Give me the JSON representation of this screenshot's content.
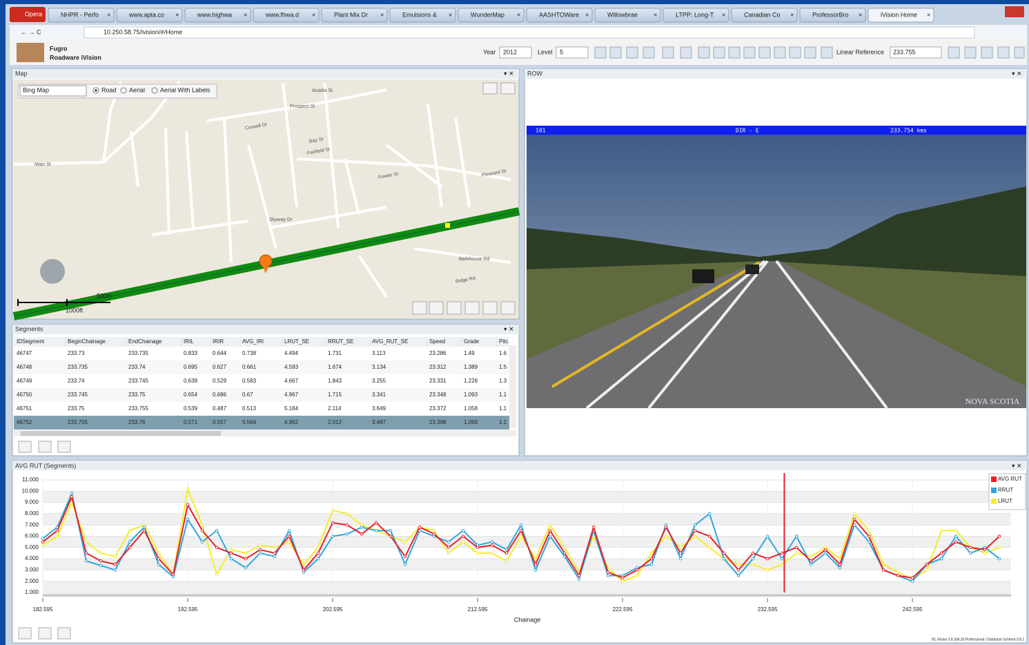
{
  "browser": {
    "menu": "Opera",
    "tabs": [
      "NHPR - Perfo",
      "www.apta.co",
      "www.highwa",
      "www.fhwa.d",
      "Plant Mix Dr",
      "Emulsions &",
      "WunderMap",
      "AASHTOWare",
      "Willowbrae",
      "LTPP: Long-T",
      "Canadian Co",
      "ProfessorBro",
      "iVision Home"
    ],
    "address": "10.250.58.75/ivision/#/Home"
  },
  "app": {
    "brand": "Fugro",
    "product": "Roadware iVision",
    "year_label": "Year",
    "year": "2012",
    "level_label": "Level",
    "level": "5",
    "linref_label": "Linear Reference",
    "linref": "233.755"
  },
  "map": {
    "title": "Map",
    "source": "Bing Map",
    "modes": [
      "Road",
      "Aerial",
      "Aerial With Labels"
    ],
    "scale_m": "500m",
    "scale_ft": "1000ft",
    "streets": [
      "Main St",
      "Prospect St",
      "Crowell Dr",
      "Bay St",
      "Fairfield St",
      "Fowler St",
      "Skyway Dr",
      "Barkhouse Rd",
      "Ridge Rd",
      "Acadia St",
      "Pleasant St"
    ]
  },
  "segments": {
    "title": "Segments",
    "columns": [
      "IDSegment",
      "BeginChainage",
      "EndChainage",
      "IRIL",
      "IRIR",
      "AVG_IRI",
      "LRUT_SE",
      "RRUT_SE",
      "AVG_RUT_SE",
      "Speed",
      "Grade",
      "Pitc"
    ],
    "rows": [
      [
        "46747",
        "233.73",
        "233.735",
        "0.833",
        "0.644",
        "0.738",
        "4.494",
        "1.731",
        "3.113",
        "23.286",
        "1.49",
        "1.6"
      ],
      [
        "46748",
        "233.735",
        "233.74",
        "0.695",
        "0.627",
        "0.661",
        "4.593",
        "1.674",
        "3.134",
        "23.312",
        "1.389",
        "1.5"
      ],
      [
        "46749",
        "233.74",
        "233.745",
        "0.638",
        "0.529",
        "0.583",
        "4.667",
        "1.843",
        "3.255",
        "23.331",
        "1.228",
        "1.3"
      ],
      [
        "46750",
        "233.745",
        "233.75",
        "0.654",
        "0.686",
        "0.67",
        "4.967",
        "1.715",
        "3.341",
        "23.348",
        "1.093",
        "1.1"
      ],
      [
        "46751",
        "233.75",
        "233.755",
        "0.539",
        "0.487",
        "0.513",
        "5.184",
        "2.114",
        "3.649",
        "23.372",
        "1.058",
        "1.1"
      ],
      [
        "46752",
        "233.755",
        "233.76",
        "0.571",
        "0.557",
        "0.564",
        "4.962",
        "2.012",
        "3.487",
        "23.398",
        "1.056",
        "1.1"
      ]
    ]
  },
  "row": {
    "title": "ROW",
    "route": "101",
    "direction": "DIR - E",
    "chainage": "233.754  kms",
    "watermark": "NOVA SCOTIA"
  },
  "chart": {
    "type": "line",
    "title": "AVG RUT (Segments)",
    "x_label": "Chainage",
    "x": [
      182.595,
      183.595,
      184.595,
      185.595,
      186.595,
      187.595,
      188.595,
      189.595,
      190.595,
      191.595,
      192.595,
      193.595,
      194.595,
      195.595,
      196.595,
      197.595,
      198.595,
      199.595,
      200.595,
      201.595,
      202.595,
      203.595,
      204.595,
      205.595,
      206.595,
      207.595,
      208.595,
      209.595,
      210.595,
      211.595,
      212.595,
      213.595,
      214.595,
      215.595,
      216.595,
      217.595,
      218.595,
      219.595,
      220.595,
      221.595,
      222.595,
      223.595,
      224.595,
      225.595,
      226.595,
      227.595,
      228.595,
      229.595,
      230.595,
      231.595,
      232.595,
      233.595,
      234.595,
      235.595,
      236.595,
      237.595,
      238.595,
      239.595,
      240.595,
      241.595,
      242.595,
      243.595,
      244.595,
      245.595,
      246.595,
      247.595,
      248.595
    ],
    "xlim": [
      182.595,
      249.4
    ],
    "xticks": [
      182.595,
      192.595,
      202.595,
      212.595,
      222.595,
      232.595,
      242.595
    ],
    "ylim": [
      1,
      11
    ],
    "yticks": [
      {
        "value": 1,
        "label": "1.000"
      },
      {
        "value": 2,
        "label": "2.000"
      },
      {
        "value": 3,
        "label": "3.000"
      },
      {
        "value": 4,
        "label": "4.000"
      },
      {
        "value": 5,
        "label": "5.000"
      },
      {
        "value": 6,
        "label": "6.000"
      },
      {
        "value": 7,
        "label": "7.000"
      },
      {
        "value": 8,
        "label": "8.000"
      },
      {
        "value": 9,
        "label": "9.000"
      },
      {
        "value": 10,
        "label": "10.000"
      },
      {
        "value": 11,
        "label": "11.000"
      }
    ],
    "cursor": 233.755,
    "series": [
      {
        "name": "AVG RUT",
        "color": "#e8202a",
        "values": [
          5.5,
          6.5,
          9.5,
          4.5,
          3.8,
          3.5,
          5,
          6.5,
          4,
          2.6,
          8.8,
          6.5,
          5,
          4.5,
          4,
          4.8,
          4.5,
          6,
          3,
          4.5,
          7.2,
          7,
          6.2,
          7.2,
          6,
          4.2,
          6.8,
          6.2,
          5,
          6,
          5,
          5.2,
          4.5,
          6.5,
          3.5,
          6.5,
          4.5,
          2.5,
          6.8,
          2.8,
          2.3,
          3,
          4,
          6.8,
          4.5,
          6.5,
          6,
          4.5,
          3,
          4.5,
          4,
          4.5,
          5,
          3.8,
          4.8,
          3.5,
          7.5,
          6,
          3,
          2.5,
          2.3,
          3.5,
          4.5,
          5.5,
          5,
          4.8,
          6
        ]
      },
      {
        "name": "RRUT",
        "color": "#2ea6dc",
        "values": [
          5.8,
          6.8,
          9.8,
          3.8,
          3.4,
          3,
          5.5,
          6.8,
          3.5,
          2.4,
          7.5,
          5.5,
          6.5,
          4,
          3.2,
          4.5,
          4.2,
          6.5,
          2.8,
          4,
          6,
          6.2,
          6.8,
          6.5,
          6.5,
          3.5,
          6.5,
          6,
          5.5,
          6.5,
          5.2,
          5.5,
          4.8,
          7,
          3,
          6,
          4.2,
          2.2,
          6.5,
          2.5,
          2.5,
          3.2,
          3.5,
          7,
          4,
          7,
          8,
          4,
          2.5,
          4,
          6,
          4,
          6,
          3.5,
          4.5,
          3.2,
          7,
          5.5,
          3,
          2.5,
          2,
          3.5,
          4,
          6,
          4.5,
          5,
          4
        ]
      },
      {
        "name": "LRUT",
        "color": "#f5ec2a",
        "values": [
          5.2,
          6,
          9,
          5.5,
          4.5,
          4.2,
          6.5,
          7,
          4.5,
          2.6,
          10.2,
          7,
          2.6,
          4.8,
          4.5,
          5.2,
          5,
          5.5,
          3.5,
          5,
          8.3,
          8,
          7,
          6.5,
          6,
          5.5,
          6.8,
          6.5,
          4.5,
          5.5,
          4.5,
          4.5,
          3.8,
          6,
          4,
          7,
          5,
          2.8,
          6,
          3.2,
          2,
          2.5,
          4.5,
          6,
          5,
          6,
          5,
          4,
          3.5,
          3.5,
          3,
          3.5,
          4.5,
          4.2,
          5,
          4,
          8,
          6.5,
          3.5,
          2.8,
          2.2,
          3,
          6.5,
          6.5,
          5,
          4.5,
          5
        ]
      }
    ]
  },
  "footer": "B1 iVision 3.8.336.20 Professional  |  Database Scheme 3.8.1"
}
